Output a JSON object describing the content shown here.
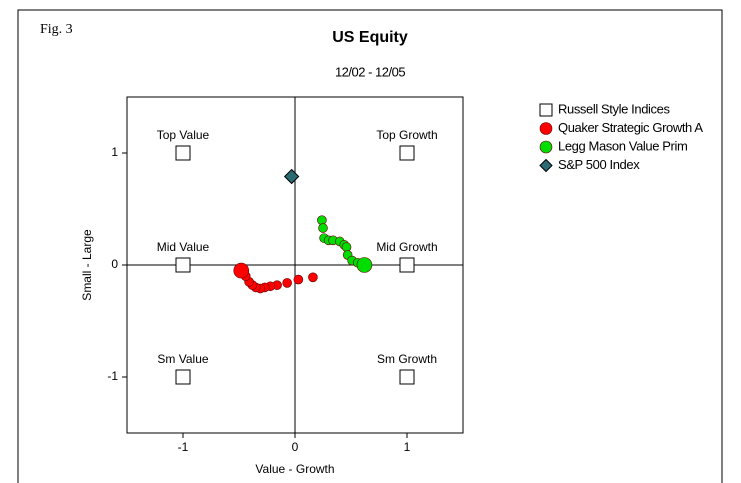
{
  "figure_label": "Fig. 3",
  "chart_data": {
    "type": "scatter",
    "title": "US Equity",
    "subtitle": "12/02 - 12/05",
    "xlabel": "Value - Growth",
    "ylabel": "Small - Large",
    "xlim": [
      -1.5,
      1.5
    ],
    "ylim": [
      -1.5,
      1.5
    ],
    "xticks": [
      -1,
      0,
      1
    ],
    "yticks": [
      -1,
      0,
      1
    ],
    "legend": "right",
    "series": [
      {
        "name": "Russell Style Indices",
        "marker": "square",
        "color": "#ffffff",
        "x": [
          -1,
          1,
          -1,
          1,
          -1,
          1
        ],
        "y": [
          1,
          1,
          0,
          0,
          -1,
          -1
        ],
        "labels": [
          "Top Value",
          "Top Growth",
          "Mid Value",
          "Mid Growth",
          "Sm Value",
          "Sm Growth"
        ]
      },
      {
        "name": "Quaker Strategic Growth A",
        "marker": "circle",
        "color": "#ff0000",
        "x": [
          0.16,
          0.03,
          -0.07,
          -0.16,
          -0.22,
          -0.27,
          -0.31,
          -0.35,
          -0.38,
          -0.41,
          -0.44,
          -0.48
        ],
        "y": [
          -0.11,
          -0.13,
          -0.16,
          -0.18,
          -0.19,
          -0.2,
          -0.21,
          -0.2,
          -0.18,
          -0.15,
          -0.1,
          -0.05
        ]
      },
      {
        "name": "Legg Mason Value Prim",
        "marker": "circle",
        "color": "#00dd00",
        "x": [
          0.24,
          0.25,
          0.26,
          0.3,
          0.34,
          0.4,
          0.44,
          0.46,
          0.47,
          0.51,
          0.56,
          0.62
        ],
        "y": [
          0.4,
          0.33,
          0.24,
          0.22,
          0.22,
          0.21,
          0.18,
          0.16,
          0.09,
          0.04,
          0.02,
          0.0
        ]
      },
      {
        "name": "S&P 500 Index",
        "marker": "diamond",
        "color": "#2a6b73",
        "x": [
          -0.03
        ],
        "y": [
          0.79
        ]
      }
    ]
  }
}
